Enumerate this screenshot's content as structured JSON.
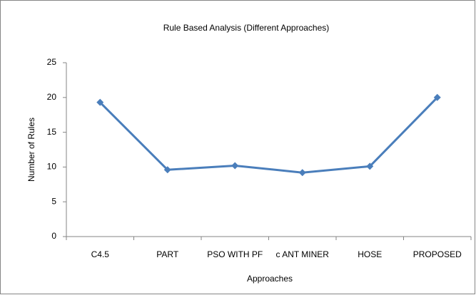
{
  "chart_data": {
    "type": "line",
    "title": "Rule Based Analysis (Different Approaches)",
    "x_label": "Approaches",
    "y_label": "Number of Rules",
    "categories": [
      "C4.5",
      "PART",
      "PSO WITH PF",
      "c ANT MINER",
      "HOSE",
      "PROPOSED"
    ],
    "values": [
      19.3,
      9.6,
      10.2,
      9.2,
      10.1,
      20
    ],
    "color": "#4a7ebb",
    "ylim": [
      0,
      25
    ],
    "yticks": [
      0,
      5,
      10,
      15,
      20,
      25
    ],
    "grid": false
  }
}
